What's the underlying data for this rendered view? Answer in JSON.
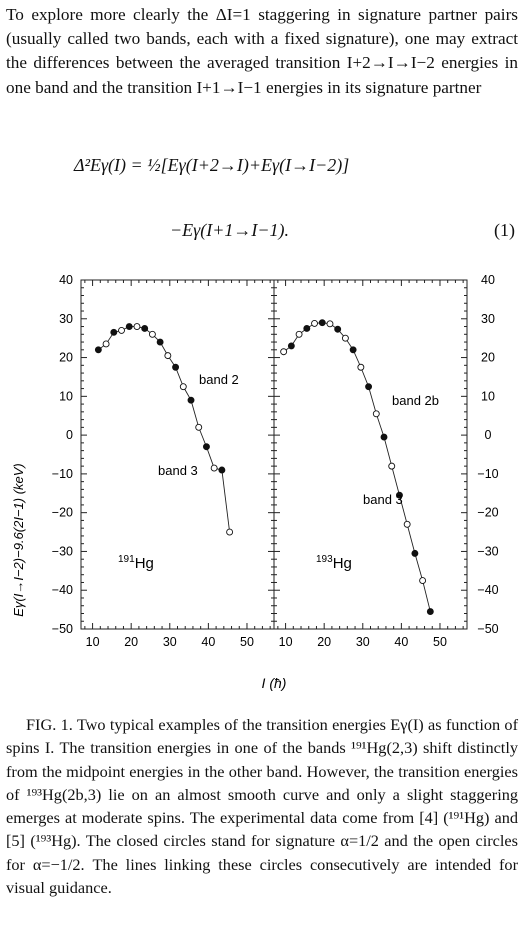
{
  "intro_text": "To explore more clearly the ΔI=1 staggering in signature partner pairs (usually called two bands, each with a fixed signature), one may extract the differences between the averaged transition I+2→I→I−2 energies in one band and the transition I+1→I−1 energies in its signature partner",
  "equation": {
    "line1": "Δ²Eγ(I) = ½[Eγ(I+2→I)+Eγ(I→I−2)]",
    "line2": "−Eγ(I+1→I−1).",
    "number": "(1)"
  },
  "chart_data": [
    {
      "type": "line",
      "panel": "left",
      "nucleus_label": "191Hg",
      "ylabel": "Eγ(I→I−2)−9.6(2I−1)  (keV)",
      "xlabel": "I  (ħ)",
      "xlim": [
        7,
        57
      ],
      "ylim": [
        -50,
        40
      ],
      "x_ticks": [
        "10",
        "20",
        "30",
        "40",
        "50"
      ],
      "y_ticks": [
        "40",
        "30",
        "20",
        "10",
        "0",
        "−10",
        "−20",
        "−30",
        "−40",
        "−50"
      ],
      "annotations": [
        "band 2",
        "band 3"
      ],
      "series": [
        {
          "marker": "filled",
          "x": [
            11.5,
            15.5,
            19.5,
            23.5,
            27.5,
            31.5,
            35.5,
            39.5,
            43.5
          ],
          "y": [
            22,
            26.5,
            28,
            27.5,
            24,
            17.5,
            9,
            -3,
            -9
          ]
        },
        {
          "marker": "open",
          "x": [
            13.5,
            17.5,
            21.5,
            25.5,
            29.5,
            33.5,
            37.5,
            41.5,
            45.5
          ],
          "y": [
            23.5,
            27,
            28,
            26,
            20.5,
            12.5,
            2,
            -8.5,
            -25
          ]
        }
      ]
    },
    {
      "type": "line",
      "panel": "right",
      "nucleus_label": "193Hg",
      "xlim": [
        7,
        57
      ],
      "ylim": [
        -50,
        40
      ],
      "x_ticks": [
        "10",
        "20",
        "30",
        "40",
        "50"
      ],
      "y_ticks": [
        "40",
        "30",
        "20",
        "10",
        "0",
        "−10",
        "−20",
        "−30",
        "−40",
        "−50"
      ],
      "annotations": [
        "band 2b",
        "band 3"
      ],
      "series": [
        {
          "marker": "filled",
          "x": [
            11.5,
            15.5,
            19.5,
            23.5,
            27.5,
            31.5,
            35.5,
            39.5,
            43.5,
            47.5
          ],
          "y": [
            23,
            27.5,
            29,
            27.3,
            22,
            12.5,
            -0.5,
            -15.5,
            -30.5,
            -45.5
          ]
        },
        {
          "marker": "open",
          "x": [
            9.5,
            13.5,
            17.5,
            21.5,
            25.5,
            29.5,
            33.5,
            37.5,
            41.5,
            45.5
          ],
          "y": [
            21.5,
            26,
            28.8,
            28.7,
            25,
            17.5,
            5.5,
            -8,
            -23,
            -37.5
          ]
        }
      ]
    }
  ],
  "caption": "FIG. 1. Two typical examples of the transition energies Eγ(I) as function of spins I. The transition energies in one of the bands ¹⁹¹Hg(2,3) shift distinctly from the midpoint energies in the other band. However, the transition energies of ¹⁹³Hg(2b,3) lie on an almost smooth curve and only a slight staggering emerges at moderate spins. The experimental data come from [4] (¹⁹¹Hg) and [5] (¹⁹³Hg). The closed circles stand for signature α=1/2 and the open circles for α=−1/2. The lines linking these circles consecutively are intended for visual guidance."
}
